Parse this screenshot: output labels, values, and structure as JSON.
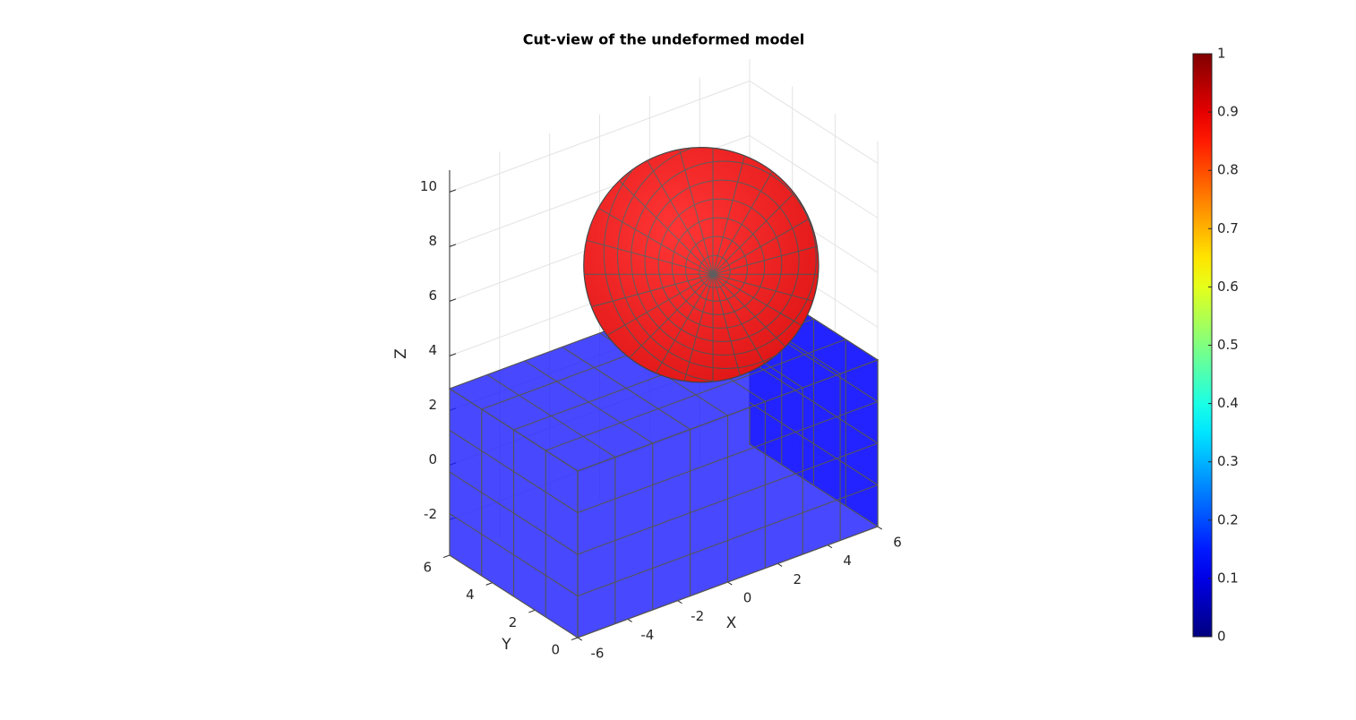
{
  "chart_data": {
    "type": "mesh3d",
    "title": "Cut-view of the undeformed model",
    "xlabel": "X",
    "ylabel": "Y",
    "zlabel": "Z",
    "xlim": [
      -6,
      6
    ],
    "ylim": [
      0,
      6
    ],
    "zlim": [
      -3.3,
      10.8
    ],
    "xticks": [
      -6,
      -4,
      -2,
      0,
      2,
      4,
      6
    ],
    "yticks": [
      0,
      2,
      4,
      6
    ],
    "zticks": [
      -2,
      0,
      2,
      4,
      6,
      8,
      10
    ],
    "grid": true,
    "block": {
      "x": [
        -6,
        6
      ],
      "y": [
        0,
        6
      ],
      "z": [
        -3.3,
        2.8
      ],
      "cells": [
        8,
        4,
        4
      ],
      "value": 0.15,
      "color": "#1a1aff"
    },
    "sphere": {
      "center": [
        1.5,
        3,
        6.3
      ],
      "radius": 4.3,
      "value": 0.85,
      "color": "#ff1a1a"
    },
    "colormap": "jet",
    "clim": [
      0,
      1
    ],
    "cticks": [
      0,
      0.1,
      0.2,
      0.3,
      0.4,
      0.5,
      0.6,
      0.7,
      0.8,
      0.9,
      1
    ]
  }
}
